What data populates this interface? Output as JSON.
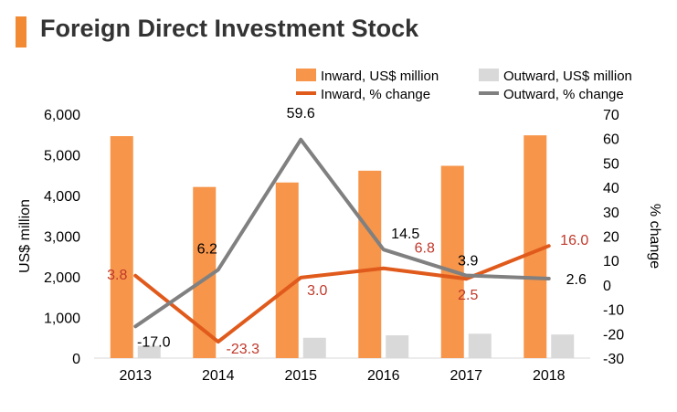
{
  "title": "Foreign Direct Investment Stock",
  "chart_data": {
    "type": "bar+line",
    "title": "Foreign Direct Investment Stock",
    "categories": [
      "2013",
      "2014",
      "2015",
      "2016",
      "2017",
      "2018"
    ],
    "series": [
      {
        "name": "Inward, US$ million",
        "kind": "bar",
        "axis": "left",
        "color": "#f7954a",
        "values": [
          5460,
          4210,
          4320,
          4610,
          4730,
          5480
        ]
      },
      {
        "name": "Outward, US$ million",
        "kind": "bar",
        "axis": "left",
        "color": "#d9d9d9",
        "values": [
          300,
          20,
          500,
          560,
          600,
          580
        ]
      },
      {
        "name": "Inward, % change",
        "kind": "line",
        "axis": "right",
        "color": "#e05a1c",
        "values": [
          3.8,
          -23.3,
          3.0,
          6.8,
          2.5,
          16.0
        ],
        "labels": [
          "3.8",
          "-23.3",
          "3.0",
          "6.8",
          "2.5",
          "16.0"
        ],
        "label_color": "#c0392b"
      },
      {
        "name": "Outward, % change",
        "kind": "line",
        "axis": "right",
        "color": "#808080",
        "values": [
          -17.0,
          6.2,
          59.6,
          14.5,
          3.9,
          2.6
        ],
        "labels": [
          "-17.0",
          "6.2",
          "59.6",
          "14.5",
          "3.9",
          "2.6"
        ],
        "label_color": "#000000"
      }
    ],
    "ylabel": "US$ million",
    "ylim": [
      0,
      6000
    ],
    "yticks": [
      "0",
      "1,000",
      "2,000",
      "3,000",
      "4,000",
      "5,000",
      "6,000"
    ],
    "y2label": "% change",
    "y2lim": [
      -30,
      70
    ],
    "y2ticks": [
      "-30",
      "-20",
      "-10",
      "0",
      "10",
      "20",
      "30",
      "40",
      "50",
      "60",
      "70"
    ],
    "legend": "top",
    "grid": false
  }
}
